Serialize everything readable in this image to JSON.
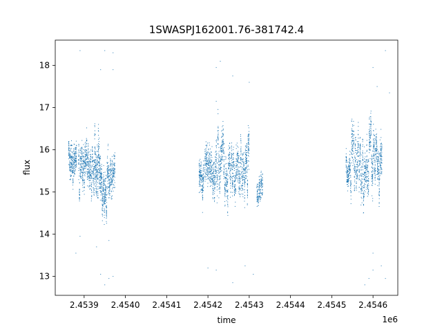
{
  "chart_data": {
    "type": "scatter",
    "title": "1SWASPJ162001.76-381742.4",
    "xlabel": "time",
    "ylabel": "flux",
    "x_offset_label": "1e6",
    "xlim": [
      2.45383,
      2.45466
    ],
    "ylim": [
      12.55,
      18.6
    ],
    "x_ticks": [
      2.4539,
      2.454,
      2.4541,
      2.4542,
      2.4543,
      2.4544,
      2.4545,
      2.4546
    ],
    "x_tick_labels": [
      "2.4539",
      "2.4540",
      "2.4541",
      "2.4542",
      "2.4543",
      "2.4544",
      "2.4545",
      "2.4546"
    ],
    "y_ticks": [
      13,
      14,
      15,
      16,
      17,
      18
    ],
    "y_tick_labels": [
      "13",
      "14",
      "15",
      "16",
      "17",
      "18"
    ],
    "grid": false,
    "legend": "none",
    "point_color": "#1f77b4",
    "clusters": [
      {
        "x": [
          2.453862,
          2.453882
        ],
        "flux_center": 15.75,
        "flux_spread": 0.35,
        "n": 260
      },
      {
        "x": [
          2.453886,
          2.453905
        ],
        "flux_center": 15.55,
        "flux_spread": 0.35,
        "n": 250
      },
      {
        "x": [
          2.453905,
          2.453925
        ],
        "flux_center": 15.5,
        "flux_spread": 0.4,
        "n": 260
      },
      {
        "x": [
          2.453925,
          2.45394
        ],
        "flux_center": 15.8,
        "flux_spread": 0.5,
        "n": 240
      },
      {
        "x": [
          2.45394,
          2.453955
        ],
        "flux_center": 15.0,
        "flux_spread": 0.35,
        "n": 230
      },
      {
        "x": [
          2.453955,
          2.453975
        ],
        "flux_center": 15.55,
        "flux_spread": 0.4,
        "n": 240
      },
      {
        "x": [
          2.454178,
          2.45419
        ],
        "flux_center": 15.3,
        "flux_spread": 0.3,
        "n": 150
      },
      {
        "x": [
          2.454192,
          2.454215
        ],
        "flux_center": 15.55,
        "flux_spread": 0.4,
        "n": 280
      },
      {
        "x": [
          2.454215,
          2.45424
        ],
        "flux_center": 15.75,
        "flux_spread": 0.45,
        "n": 300
      },
      {
        "x": [
          2.45424,
          2.454265
        ],
        "flux_center": 15.45,
        "flux_spread": 0.4,
        "n": 280
      },
      {
        "x": [
          2.454265,
          2.45429
        ],
        "flux_center": 15.55,
        "flux_spread": 0.4,
        "n": 270
      },
      {
        "x": [
          2.45429,
          2.4543
        ],
        "flux_center": 15.5,
        "flux_spread": 0.45,
        "n": 140
      },
      {
        "x": [
          2.454318,
          2.454333
        ],
        "flux_center": 15.0,
        "flux_spread": 0.25,
        "n": 150
      },
      {
        "x": [
          2.454534,
          2.454545
        ],
        "flux_center": 15.5,
        "flux_spread": 0.3,
        "n": 140
      },
      {
        "x": [
          2.454545,
          2.45457
        ],
        "flux_center": 15.9,
        "flux_spread": 0.45,
        "n": 270
      },
      {
        "x": [
          2.45457,
          2.45459
        ],
        "flux_center": 15.3,
        "flux_spread": 0.45,
        "n": 240
      },
      {
        "x": [
          2.45459,
          2.45461
        ],
        "flux_center": 15.9,
        "flux_spread": 0.45,
        "n": 250
      },
      {
        "x": [
          2.45461,
          2.454622
        ],
        "flux_center": 15.7,
        "flux_spread": 0.4,
        "n": 160
      }
    ],
    "outliers": [
      [
        2.45389,
        18.35
      ],
      [
        2.45395,
        18.35
      ],
      [
        2.45397,
        18.3
      ],
      [
        2.45394,
        17.9
      ],
      [
        2.45397,
        17.9
      ],
      [
        2.45389,
        13.95
      ],
      [
        2.45393,
        13.7
      ],
      [
        2.45395,
        12.8
      ],
      [
        2.45396,
        12.95
      ],
      [
        2.45397,
        13.0
      ],
      [
        2.45394,
        13.05
      ],
      [
        2.45388,
        13.55
      ],
      [
        2.45396,
        13.85
      ],
      [
        2.45422,
        17.95
      ],
      [
        2.45423,
        18.1
      ],
      [
        2.45426,
        17.75
      ],
      [
        2.4543,
        17.6
      ],
      [
        2.45422,
        17.15
      ],
      [
        2.45422,
        13.15
      ],
      [
        2.45426,
        12.85
      ],
      [
        2.45429,
        13.25
      ],
      [
        2.45431,
        13.05
      ],
      [
        2.4542,
        13.2
      ],
      [
        2.4546,
        17.95
      ],
      [
        2.45463,
        18.35
      ],
      [
        2.45461,
        17.5
      ],
      [
        2.45464,
        17.35
      ],
      [
        2.45459,
        12.95
      ],
      [
        2.4546,
        13.15
      ],
      [
        2.45462,
        13.25
      ],
      [
        2.45463,
        12.95
      ],
      [
        2.4546,
        13.55
      ],
      [
        2.45458,
        12.8
      ]
    ]
  }
}
